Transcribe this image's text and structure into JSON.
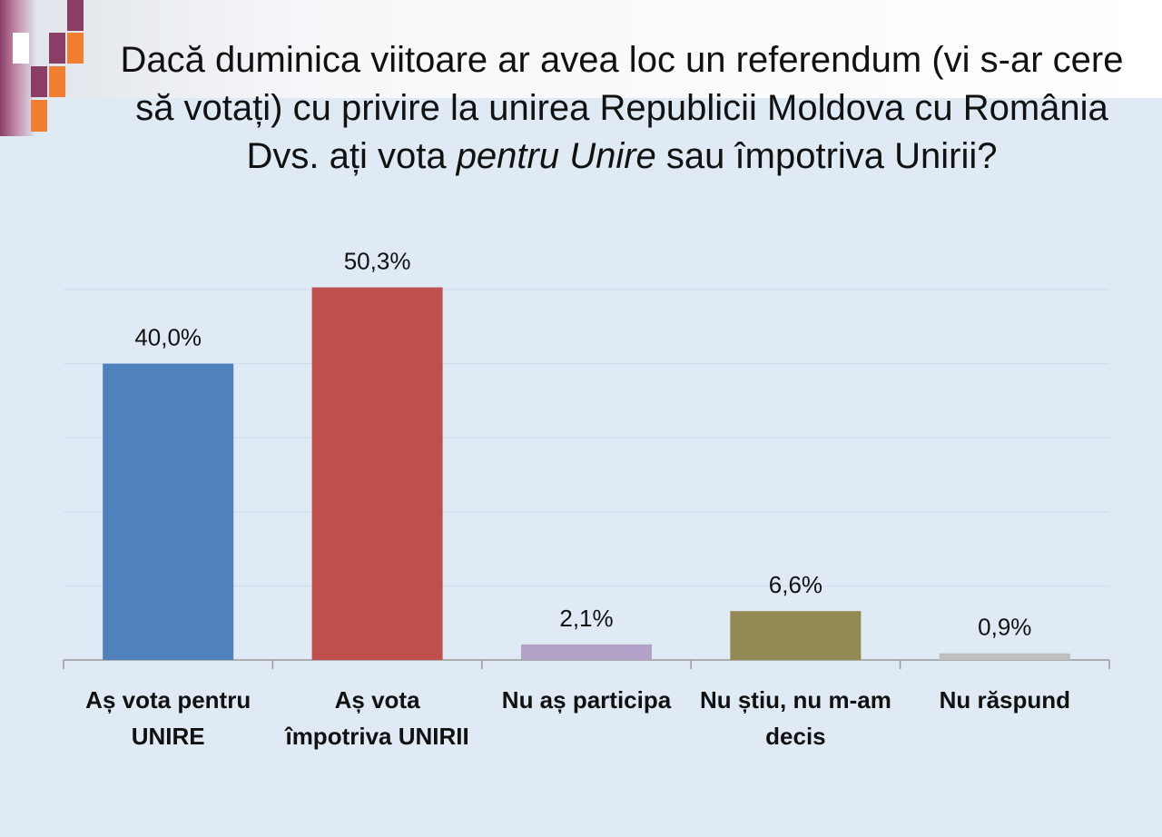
{
  "title": {
    "part1": "Dacă duminica viitoare ar avea loc un referendum (vi s-ar cere să votați) cu privire la unirea Republicii Moldova cu România Dvs. ați vota ",
    "emphasis": "pentru Unire",
    "part2": "  sau împotriva Unirii?"
  },
  "chart_data": {
    "type": "bar",
    "title": "Dacă duminica viitoare ar avea loc un referendum (vi s-ar cere să votați) cu privire la unirea Republicii Moldova cu România Dvs. ați vota pentru Unire  sau împotriva Unirii?",
    "categories": [
      "Aș vota pentru UNIRE",
      "Aș vota împotriva UNIRII",
      "Nu aș participa",
      "Nu știu, nu m-am decis",
      "Nu răspund"
    ],
    "values": [
      40.0,
      50.3,
      2.1,
      6.6,
      0.9
    ],
    "data_labels": [
      "40,0%",
      "50,3%",
      "2,1%",
      "6,6%",
      "0,9%"
    ],
    "colors": [
      "#4f81bd",
      "#c0504d",
      "#b3a2c7",
      "#938953",
      "#bfbfbf"
    ],
    "ylim": [
      0,
      50
    ],
    "xlabel": "",
    "ylabel": "",
    "grid": true,
    "legend": "none"
  }
}
